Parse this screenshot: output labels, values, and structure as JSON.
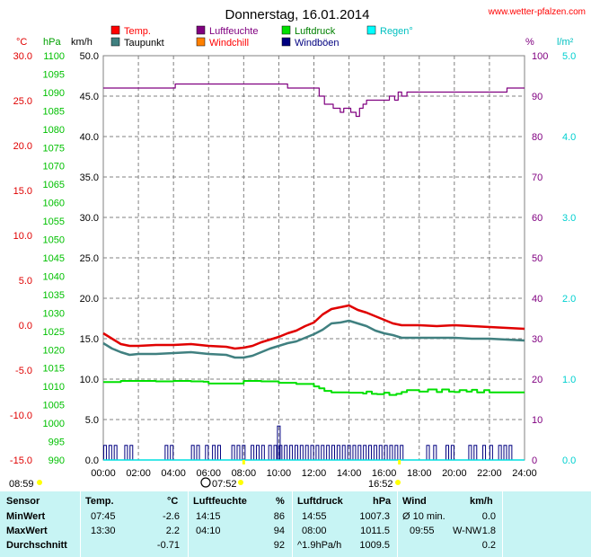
{
  "chart_data": {
    "type": "line",
    "title": "Donnerstag, 16.01.2014",
    "source": "www.wetter-pfalzen.com",
    "x_ticks": [
      "00:00",
      "02:00",
      "04:00",
      "06:00",
      "08:00",
      "10:00",
      "12:00",
      "14:00",
      "16:00",
      "18:00",
      "20:00",
      "22:00",
      "24:00"
    ],
    "xlim": [
      0,
      24
    ],
    "axes": {
      "temp": {
        "unit": "°C",
        "color": "#e00000",
        "ylim": [
          -15,
          30
        ],
        "ticks": [
          "30.0",
          "25.0",
          "20.0",
          "15.0",
          "10.0",
          "5.0",
          "0.0",
          "-5.0",
          "-10.0",
          "-15.0"
        ]
      },
      "pressure": {
        "unit": "hPa",
        "color": "#00c000",
        "ylim": [
          990,
          1100
        ],
        "ticks": [
          "1100",
          "1095",
          "1090",
          "1085",
          "1080",
          "1075",
          "1070",
          "1065",
          "1060",
          "1055",
          "1050",
          "1045",
          "1040",
          "1035",
          "1030",
          "1025",
          "1020",
          "1015",
          "1010",
          "1005",
          "1000",
          "995",
          "990"
        ]
      },
      "wind": {
        "unit": "km/h",
        "color": "#000000",
        "ylim": [
          0,
          50
        ],
        "ticks": [
          "50.0",
          "45.0",
          "40.0",
          "35.0",
          "30.0",
          "25.0",
          "20.0",
          "15.0",
          "10.0",
          "5.0",
          "0.0"
        ]
      },
      "humidity": {
        "unit": "%",
        "color": "#800080",
        "ylim": [
          0,
          100
        ],
        "ticks": [
          "100",
          "90",
          "80",
          "70",
          "60",
          "50",
          "40",
          "30",
          "20",
          "10",
          "0"
        ]
      },
      "rain": {
        "unit": "l/m²",
        "color": "#00e0e0",
        "ylim": [
          0,
          5
        ],
        "ticks": [
          "5.0",
          "4.0",
          "3.0",
          "2.0",
          "1.0",
          "0.0"
        ]
      }
    },
    "legend": [
      {
        "name": "Temp.",
        "color": "#ff0000"
      },
      {
        "name": "Luftfeuchte",
        "color": "#800080"
      },
      {
        "name": "Luftdruck",
        "color": "#00e000"
      },
      {
        "name": "Regen°",
        "color": "#00ffff"
      },
      {
        "name": "Taupunkt",
        "color": "#408080"
      },
      {
        "name": "Windchill",
        "color": "#ff8000"
      },
      {
        "name": "Windböen",
        "color": "#000080"
      }
    ],
    "series": [
      {
        "name": "Temp.",
        "axis": "temp",
        "color": "#e00000",
        "width": 2.5,
        "x": [
          0,
          0.5,
          1,
          1.5,
          2,
          3,
          4,
          5,
          6,
          7,
          7.5,
          8,
          8.5,
          9,
          9.5,
          10,
          10.5,
          11,
          11.5,
          12,
          12.5,
          13,
          13.5,
          14,
          14.5,
          15,
          15.5,
          16,
          16.5,
          17,
          18,
          19,
          20,
          21,
          22,
          23,
          24
        ],
        "y": [
          -0.9,
          -1.5,
          -2.1,
          -2.3,
          -2.3,
          -2.2,
          -2.2,
          -2.1,
          -2.3,
          -2.4,
          -2.6,
          -2.5,
          -2.3,
          -1.9,
          -1.6,
          -1.3,
          -0.9,
          -0.6,
          -0.1,
          0.3,
          1.2,
          1.8,
          2.0,
          2.2,
          1.7,
          1.4,
          1.0,
          0.6,
          0.2,
          0.0,
          0.0,
          -0.1,
          0.0,
          -0.1,
          -0.2,
          -0.3,
          -0.4
        ]
      },
      {
        "name": "Taupunkt",
        "axis": "temp",
        "color": "#408080",
        "width": 2.5,
        "x": [
          0,
          0.5,
          1,
          1.5,
          2,
          3,
          4,
          5,
          6,
          7,
          7.5,
          8,
          8.5,
          9,
          9.5,
          10,
          10.5,
          11,
          11.5,
          12,
          12.5,
          13,
          13.5,
          14,
          14.5,
          15,
          15.5,
          16,
          16.5,
          17,
          18,
          19,
          20,
          21,
          22,
          23,
          24
        ],
        "y": [
          -2.0,
          -2.6,
          -3.0,
          -3.3,
          -3.2,
          -3.2,
          -3.1,
          -3.0,
          -3.2,
          -3.3,
          -3.6,
          -3.6,
          -3.4,
          -3.0,
          -2.6,
          -2.3,
          -2.0,
          -1.8,
          -1.4,
          -1.0,
          -0.5,
          0.2,
          0.3,
          0.5,
          0.2,
          -0.1,
          -0.6,
          -0.9,
          -1.1,
          -1.4,
          -1.4,
          -1.4,
          -1.4,
          -1.5,
          -1.5,
          -1.6,
          -1.7
        ]
      },
      {
        "name": "Luftdruck",
        "axis": "pressure",
        "color": "#00e000",
        "width": 2,
        "step": true,
        "x": [
          0,
          1,
          2,
          3,
          4,
          5,
          5.7,
          6,
          7,
          7.5,
          8,
          9,
          10,
          11,
          12,
          12.3,
          12.6,
          13,
          14,
          14.8,
          15,
          15.3,
          15.6,
          16,
          16.3,
          16.7,
          17,
          17.3,
          17.7,
          18,
          18.5,
          19,
          19.3,
          19.7,
          20,
          20.3,
          20.7,
          21,
          21.3,
          21.7,
          22,
          24
        ],
        "y": [
          1011.2,
          1011.5,
          1011.5,
          1011.4,
          1011.5,
          1011.4,
          1011.3,
          1010.8,
          1010.8,
          1010.8,
          1011.5,
          1011.4,
          1011.0,
          1010.7,
          1010.0,
          1009.5,
          1008.8,
          1008.4,
          1008.3,
          1008.1,
          1008.6,
          1008.0,
          1007.9,
          1008.3,
          1007.7,
          1008.0,
          1008.5,
          1009.0,
          1009.0,
          1008.6,
          1009.2,
          1008.5,
          1009.2,
          1008.6,
          1008.5,
          1009.0,
          1008.6,
          1009.1,
          1008.4,
          1009.0,
          1008.4,
          1008.4
        ]
      },
      {
        "name": "Luftfeuchte",
        "axis": "humidity",
        "color": "#800080",
        "width": 1.2,
        "step": true,
        "x": [
          0,
          1,
          2,
          3,
          4,
          4.1,
          5,
          6,
          7,
          8,
          9,
          10,
          10.5,
          11,
          12,
          12.3,
          12.6,
          12.9,
          13.1,
          13.3,
          13.5,
          13.7,
          13.9,
          14.1,
          14.25,
          14.4,
          14.6,
          14.8,
          15,
          16,
          16.3,
          16.6,
          16.8,
          17,
          17.3,
          17.6,
          18,
          19,
          20,
          21,
          22,
          23,
          24
        ],
        "y": [
          92,
          92,
          92,
          92,
          92,
          93,
          93,
          93,
          93,
          93,
          93,
          93,
          92,
          92,
          92,
          90,
          88,
          88,
          87,
          87,
          86,
          87,
          87,
          86,
          86,
          85,
          87,
          88,
          89,
          89,
          90,
          89,
          91,
          90,
          91,
          91,
          91,
          91,
          91,
          91,
          91,
          92,
          92
        ]
      },
      {
        "name": "Windböen",
        "axis": "wind",
        "color": "#000080",
        "width": 1,
        "type": "spikes",
        "x": [
          0.1,
          0.4,
          0.7,
          1.3,
          1.6,
          3.6,
          3.9,
          5.1,
          5.4,
          5.9,
          6.3,
          6.6,
          7.4,
          7.7,
          8.0,
          8.5,
          8.8,
          9.1,
          9.5,
          9.8,
          10.0,
          10.1,
          10.4,
          10.7,
          11.0,
          11.3,
          11.6,
          11.9,
          12.2,
          12.5,
          12.8,
          13.1,
          13.4,
          13.7,
          14.0,
          14.3,
          14.6,
          14.9,
          15.2,
          15.5,
          15.8,
          16.1,
          16.4,
          16.7,
          17.0,
          18.5,
          18.9,
          19.6,
          19.9,
          20.9,
          21.2,
          21.7,
          22.1,
          22.6,
          22.9,
          23.2
        ],
        "y": [
          1.8,
          1.8,
          1.8,
          1.8,
          1.8,
          1.8,
          1.8,
          1.8,
          1.8,
          1.8,
          1.8,
          1.8,
          1.8,
          1.8,
          1.8,
          1.8,
          1.8,
          1.8,
          1.8,
          1.8,
          4.2,
          1.8,
          1.8,
          1.8,
          1.8,
          1.8,
          1.8,
          1.8,
          1.8,
          1.8,
          1.8,
          1.8,
          1.8,
          1.8,
          1.8,
          1.8,
          1.8,
          1.8,
          1.8,
          1.8,
          1.8,
          1.8,
          1.8,
          1.8,
          1.8,
          1.8,
          1.8,
          1.8,
          1.8,
          1.8,
          1.8,
          1.8,
          1.8,
          1.8,
          1.8,
          1.8
        ]
      }
    ],
    "sunrise": "08:00",
    "sunset": "16:52",
    "daylight_start_label": "08:59",
    "sun_label_1": "07:52",
    "sun_label_2": "16:52"
  },
  "table": {
    "headers": {
      "sensor": "Sensor",
      "temp": "Temp.",
      "temp_unit": "°C",
      "hum": "Luftfeuchte",
      "hum_unit": "%",
      "press": "Luftdruck",
      "press_unit": "hPa",
      "wind": "Wind",
      "wind_unit": "km/h"
    },
    "min": {
      "label": "MinWert",
      "temp_time": "07:45",
      "temp_val": "-2.6",
      "hum_time": "14:15",
      "hum_val": "86",
      "press_time": "14:55",
      "press_val": "1007.3",
      "wind_time": "Ø 10 min.",
      "wind_val": "0.0"
    },
    "max": {
      "label": "MaxWert",
      "temp_time": "13:30",
      "temp_val": "2.2",
      "hum_time": "04:10",
      "hum_val": "94",
      "press_time": "08:00",
      "press_val": "1011.5",
      "wind_time": "09:55",
      "wind_dir": "W-NW",
      "wind_val": "1.8"
    },
    "avg": {
      "label": "Durchschnitt",
      "temp_val": "-0.71",
      "hum_val": "92",
      "press_time": "^1.9hPa/h",
      "press_val": "1009.5",
      "wind_val": "0.2"
    }
  }
}
